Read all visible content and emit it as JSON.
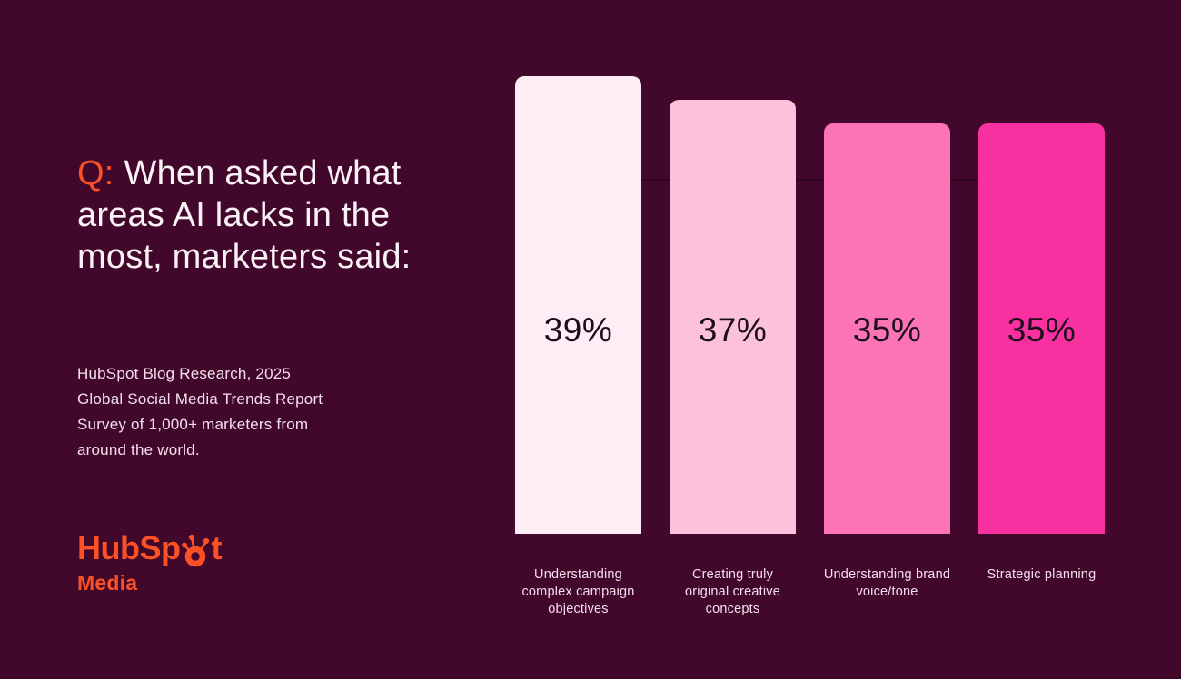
{
  "colors": {
    "background": "#42082b",
    "accent_orange": "#fb5125",
    "heading_text": "#fbf1f7",
    "body_text": "#f6dfeb",
    "value_label_text": "#1d0e1d",
    "gridline": "rgba(10,0,8,0.30)"
  },
  "question": {
    "prefix": "Q:",
    "lines": [
      "When asked what",
      "areas AI lacks in the",
      "most, marketers said:"
    ],
    "full_text": "Q: When asked what areas AI lacks in the most, marketers said:"
  },
  "source": {
    "lines": [
      "HubSpot Blog Research, 2025",
      "Global Social Media Trends Report",
      "Survey of 1,000+ marketers from",
      "around the world."
    ]
  },
  "logo": {
    "wordmark_start": "HubSp",
    "wordmark_end": "t",
    "icon": "hubspot-sprocket-icon",
    "subbrand": "Media"
  },
  "chart_data": {
    "type": "bar",
    "categories": [
      "Understanding complex campaign objectives",
      "Creating truly original creative concepts",
      "Understanding brand voice/tone",
      "Strategic planning"
    ],
    "values": [
      39,
      37,
      35,
      35
    ],
    "value_labels": [
      "39%",
      "37%",
      "35%",
      "35%"
    ],
    "bar_colors": [
      "#fdeef5",
      "#fcc2dc",
      "#fc74b6",
      "#f930a0"
    ],
    "title": "",
    "xlabel": "",
    "ylabel": "",
    "ylim": [
      0,
      45.5
    ],
    "axes_visible": false,
    "grid": "single faint horizontal line at 30%",
    "legend": "none",
    "value_labels_position": "inside-bar"
  }
}
